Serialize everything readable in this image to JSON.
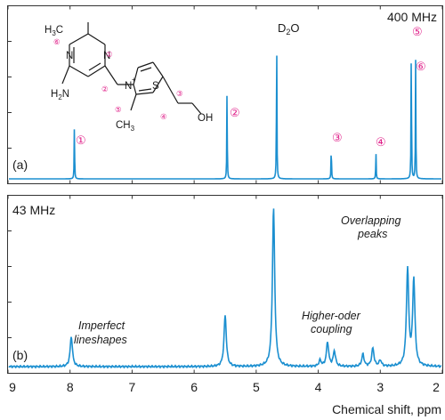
{
  "chart_data": [
    {
      "panel_label": "(a)",
      "field_label": "400 MHz",
      "type": "line",
      "title": "",
      "xlabel": "Chemical shift, ppm",
      "xlim": [
        9,
        2
      ],
      "x_ticks": [
        9,
        8,
        7,
        6,
        5,
        4,
        3,
        2
      ],
      "y_ticks_shown": false,
      "grid": false,
      "color": "#1b8fd0",
      "peaks": [
        {
          "ppm": 7.93,
          "height": 0.36,
          "label": "①"
        },
        {
          "ppm": 5.47,
          "height": 0.6,
          "label": "②"
        },
        {
          "ppm": 4.67,
          "height": 1.0,
          "label": "D2O"
        },
        {
          "ppm": 3.79,
          "height": 0.24,
          "label": "③"
        },
        {
          "ppm": 3.07,
          "height": 0.18,
          "label": "④"
        },
        {
          "ppm": 2.5,
          "height": 0.95,
          "label": "⑤"
        },
        {
          "ppm": 2.43,
          "height": 0.78,
          "label": "⑥"
        }
      ]
    },
    {
      "panel_label": "(b)",
      "field_label": "43 MHz",
      "type": "line",
      "title": "",
      "xlabel": "Chemical shift, ppm",
      "xlim": [
        9,
        2
      ],
      "x_ticks": [
        9,
        8,
        7,
        6,
        5,
        4,
        3,
        2
      ],
      "y_ticks_shown": false,
      "grid": false,
      "color": "#1b8fd0",
      "peaks": [
        {
          "ppm": 7.98,
          "height": 0.2
        },
        {
          "ppm": 5.5,
          "height": 0.34
        },
        {
          "ppm": 4.72,
          "height": 1.05
        },
        {
          "ppm": 3.97,
          "height": 0.04
        },
        {
          "ppm": 3.85,
          "height": 0.16
        },
        {
          "ppm": 3.74,
          "height": 0.1
        },
        {
          "ppm": 3.28,
          "height": 0.08
        },
        {
          "ppm": 3.12,
          "height": 0.12
        },
        {
          "ppm": 3.0,
          "height": 0.04
        },
        {
          "ppm": 2.56,
          "height": 0.64
        },
        {
          "ppm": 2.46,
          "height": 0.57
        }
      ],
      "annotations": [
        {
          "text": "Imperfect",
          "ppm": 7.5
        },
        {
          "text": "lineshapes",
          "ppm": 7.5
        },
        {
          "text": "Higher-oder",
          "ppm": 3.7
        },
        {
          "text": "coupling",
          "ppm": 3.7
        },
        {
          "text": "Overlapping",
          "ppm": 2.6
        },
        {
          "text": "peaks",
          "ppm": 2.6
        }
      ]
    }
  ],
  "molecule": {
    "atoms": [
      "H3C",
      "N",
      "N",
      "H2N",
      "N",
      "S",
      "OH",
      "CH3"
    ],
    "position_labels": [
      "①",
      "②",
      "③",
      "④",
      "⑤",
      "⑥"
    ],
    "solvent_label": "D2O"
  }
}
